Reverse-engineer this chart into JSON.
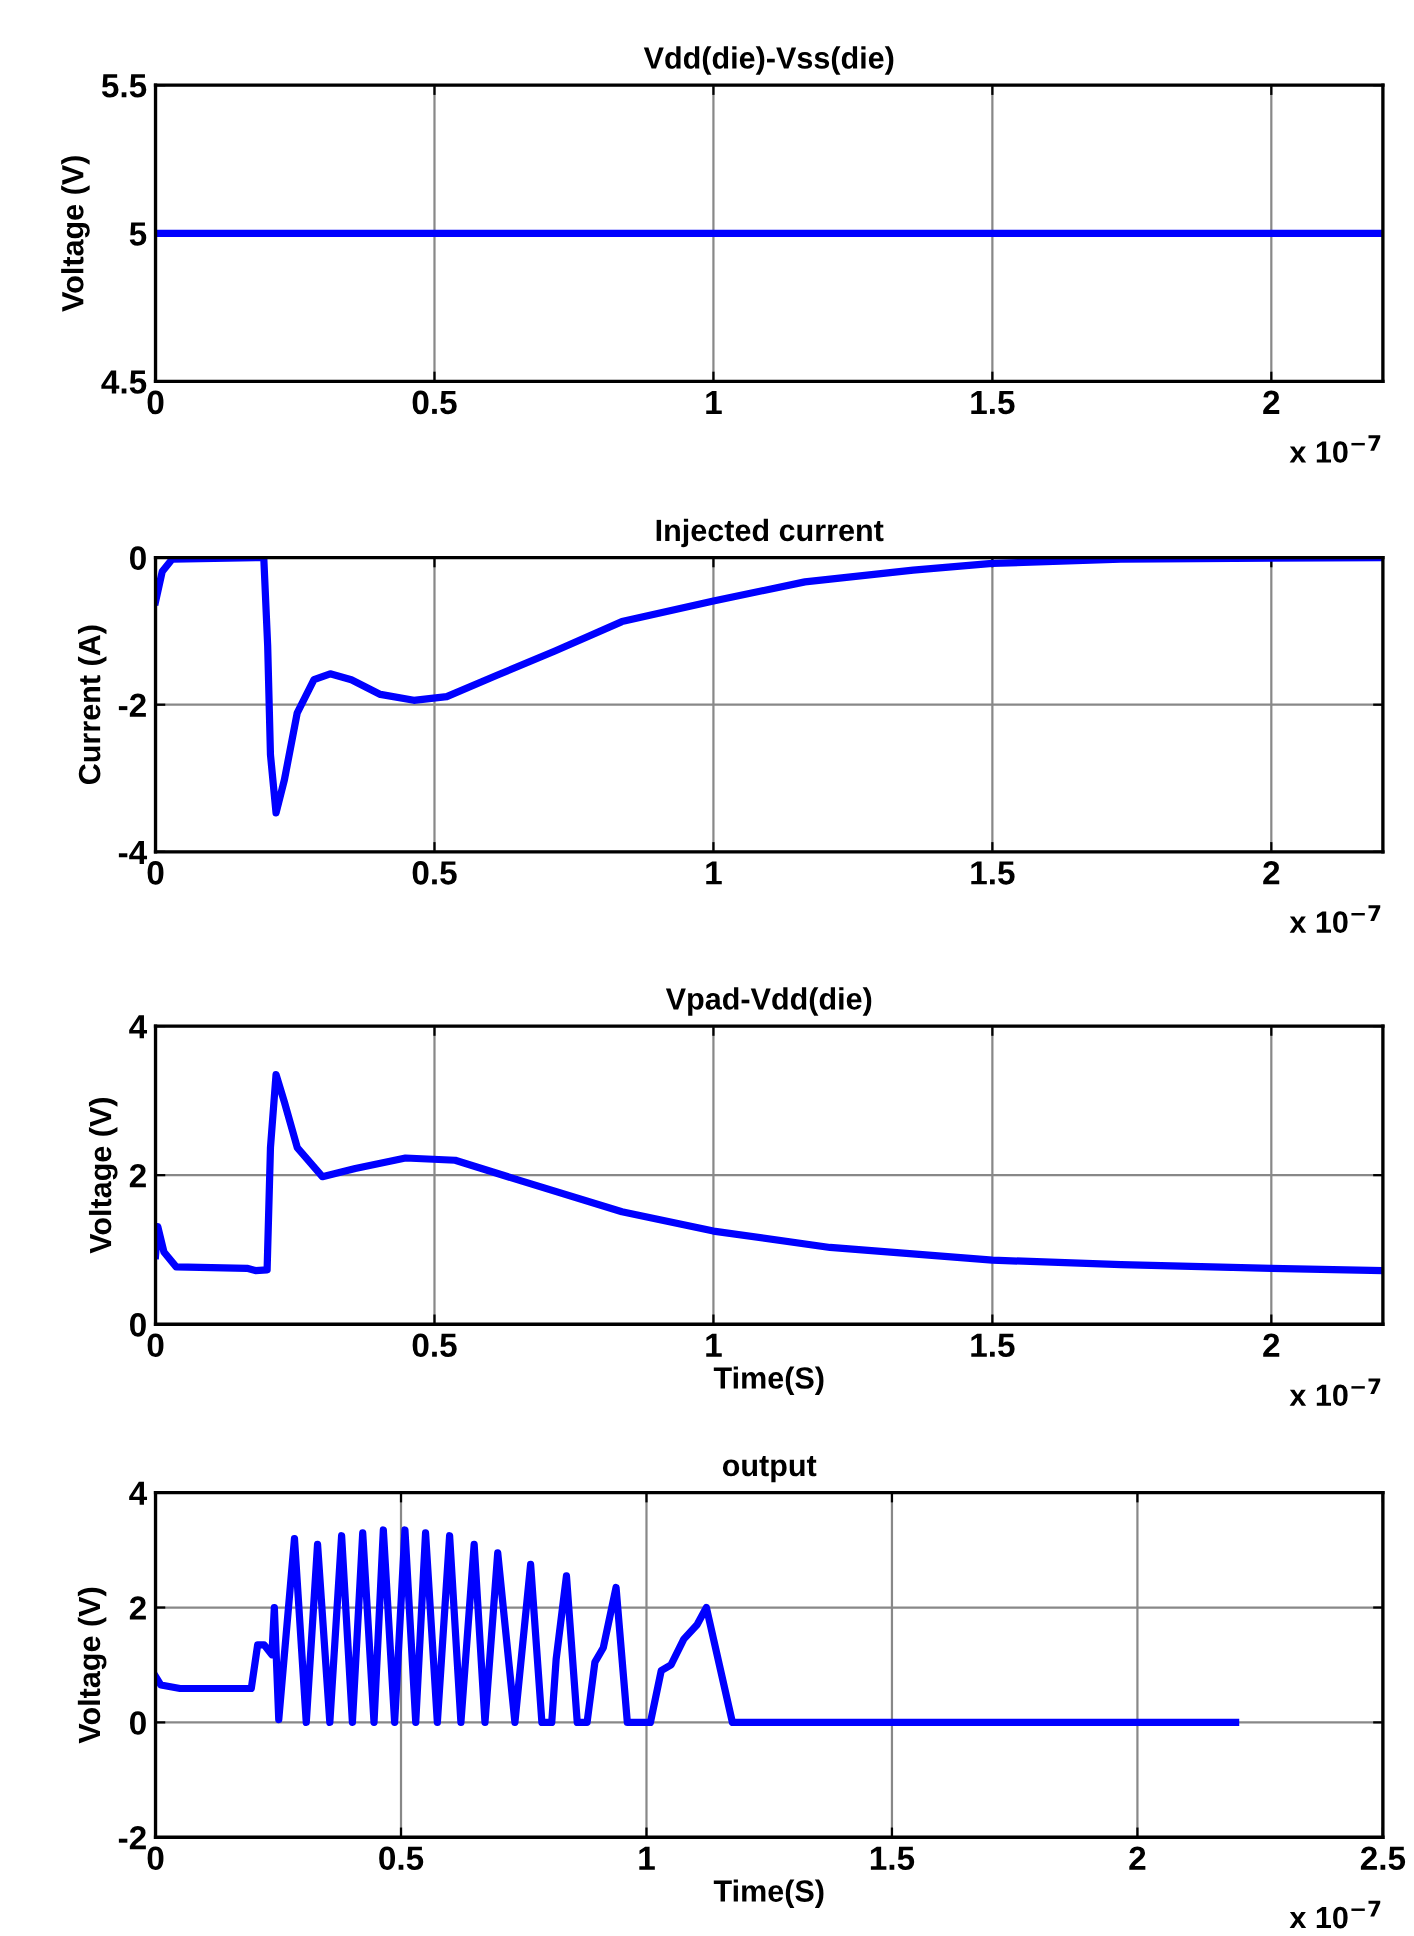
{
  "chart_data": [
    {
      "type": "line",
      "title": "Vdd(die)-Vss(die)",
      "ylabel": "Voltage (V)",
      "annotations": [
        "x 10$^{−7}$"
      ],
      "xlim": [
        0,
        2.2
      ],
      "xticks": [
        0,
        0.5,
        1,
        1.5,
        2
      ],
      "ylim": [
        4.5,
        5.5
      ],
      "yticks": [
        4.5,
        5,
        5.5
      ],
      "grid": true,
      "series": [
        {
          "color": "#0000ff",
          "x": [
            0,
            2.2
          ],
          "values": [
            5,
            5
          ]
        }
      ]
    },
    {
      "type": "line",
      "title": "Injected current",
      "ylabel": "Current (A)",
      "annotations": [
        "x 10$^{−7}$"
      ],
      "xlim": [
        0,
        2.2
      ],
      "xticks": [
        0,
        0.5,
        1,
        1.5,
        2
      ],
      "ylim": [
        -4,
        0
      ],
      "yticks": [
        -4,
        -2,
        0
      ],
      "grid": true,
      "series": [
        {
          "color": "#0000ff",
          "x": [
            0,
            0.012,
            0.03,
            0.194,
            0.201,
            0.206,
            0.216,
            0.231,
            0.254,
            0.284,
            0.313,
            0.351,
            0.403,
            0.463,
            0.522,
            0.612,
            0.716,
            0.836,
            1,
            1.164,
            1.358,
            1.5,
            1.73,
            2.2
          ],
          "values": [
            -0.6,
            -0.19,
            -0.02,
            0,
            -1.2,
            -2.68,
            -3.47,
            -3.02,
            -2.11,
            -1.66,
            -1.58,
            -1.66,
            -1.86,
            -1.94,
            -1.89,
            -1.6,
            -1.27,
            -0.87,
            -0.59,
            -0.33,
            -0.17,
            -0.08,
            -0.02,
            0
          ]
        }
      ]
    },
    {
      "type": "line",
      "title": "Vpad-Vdd(die)",
      "ylabel": "Voltage (V)",
      "xlabel": "Time(S)",
      "annotations": [
        "x 10$^{−7}$"
      ],
      "xlim": [
        0,
        2.2
      ],
      "xticks": [
        0,
        0.5,
        1,
        1.5,
        2
      ],
      "ylim": [
        0,
        4
      ],
      "yticks": [
        0,
        2,
        4
      ],
      "grid": true,
      "series": [
        {
          "color": "#0000ff",
          "x": [
            0,
            0.004,
            0.015,
            0.037,
            0.164,
            0.179,
            0.2,
            0.206,
            0.216,
            0.231,
            0.254,
            0.299,
            0.358,
            0.448,
            0.537,
            0.657,
            0.836,
            1,
            1.209,
            1.5,
            1.731,
            2,
            2.2
          ],
          "values": [
            0.92,
            1.31,
            0.97,
            0.77,
            0.75,
            0.72,
            0.73,
            2.37,
            3.35,
            2.98,
            2.37,
            1.98,
            2.09,
            2.23,
            2.2,
            1.92,
            1.51,
            1.25,
            1.03,
            0.86,
            0.8,
            0.75,
            0.72
          ]
        }
      ]
    },
    {
      "type": "line",
      "title": "output",
      "ylabel": "Voltage (V)",
      "xlabel": "Time(S)",
      "annotations": [
        "x 10$^{−7}$"
      ],
      "xlim": [
        0,
        2.5
      ],
      "xticks": [
        0,
        0.5,
        1,
        1.5,
        2,
        2.5
      ],
      "ylim": [
        -2,
        4
      ],
      "yticks": [
        -2,
        0,
        2,
        4
      ],
      "grid": true,
      "series": [
        {
          "color": "#0000ff",
          "x": [
            0,
            0.011,
            0.05,
            0.195,
            0.208,
            0.221,
            0.237,
            0.242,
            0.251,
            0.283,
            0.307,
            0.33,
            0.355,
            0.379,
            0.401,
            0.422,
            0.445,
            0.464,
            0.487,
            0.508,
            0.53,
            0.55,
            0.574,
            0.599,
            0.622,
            0.649,
            0.671,
            0.697,
            0.732,
            0.764,
            0.787,
            0.807,
            0.816,
            0.837,
            0.859,
            0.879,
            0.895,
            0.912,
            0.938,
            0.961,
            1.008,
            1.03,
            1.05,
            1.076,
            1.103,
            1.122,
            1.175,
            2.2
          ],
          "values": [
            0.8,
            0.65,
            0.59,
            0.59,
            1.35,
            1.35,
            1.18,
            2.0,
            0.05,
            3.2,
            0,
            3.1,
            0,
            3.25,
            0,
            3.3,
            0,
            3.35,
            0,
            3.35,
            0,
            3.3,
            0,
            3.25,
            0,
            3.1,
            0,
            2.95,
            0,
            2.75,
            0,
            0,
            1.1,
            2.55,
            0,
            0,
            1.05,
            1.3,
            2.35,
            0,
            0,
            0.9,
            1.0,
            1.45,
            1.7,
            2.0,
            0,
            0
          ]
        }
      ]
    }
  ]
}
